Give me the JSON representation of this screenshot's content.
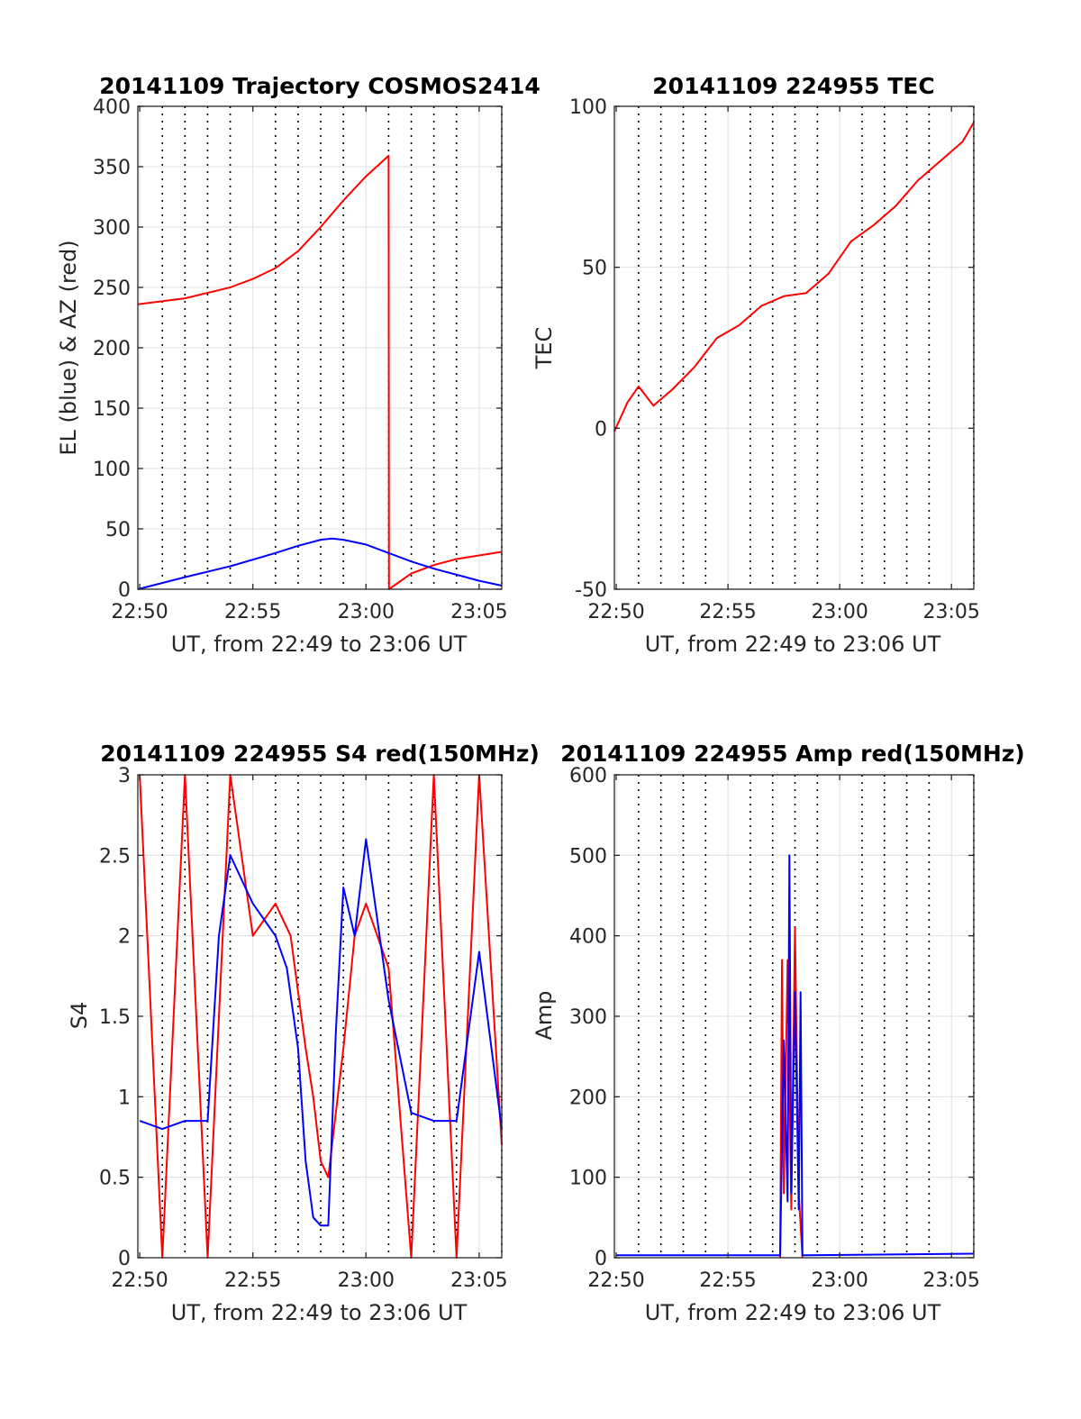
{
  "colors": {
    "az": "#ff0000",
    "el": "#0000ff",
    "tec": "#ff0000",
    "red": "#ff0000",
    "blue": "#0000ff",
    "grid": "#dfdfdf",
    "vline": "#000000"
  },
  "chart_data": [
    {
      "type": "line",
      "title": "20141109 Trajectory COSMOS2414",
      "xlabel": "UT, from 22:49 to 23:06 UT",
      "ylabel": "EL (blue) & AZ (red)",
      "xlim": [
        "22:49:55",
        "23:06:00"
      ],
      "ylim": [
        0,
        400
      ],
      "x_ticks": [
        "22:50",
        "22:55",
        "23:00",
        "23:05"
      ],
      "y_ticks": [
        0,
        50,
        100,
        150,
        200,
        250,
        300,
        350,
        400
      ],
      "grid": true,
      "time_markers": [
        "22:51",
        "22:52",
        "22:53",
        "22:54",
        "22:56",
        "22:57",
        "22:58",
        "22:59",
        "23:01",
        "23:02",
        "23:03",
        "23:04",
        "23:06"
      ],
      "series": [
        {
          "color": "red",
          "x": [
            "22:49:55",
            "22:52:00",
            "22:54:00",
            "22:55:00",
            "22:56:00",
            "22:57:00",
            "22:58:00",
            "22:59:00",
            "23:00:00",
            "23:01:00",
            "23:01:01",
            "23:02:00",
            "23:03:00",
            "23:04:00",
            "23:05:00",
            "23:06:00"
          ],
          "values": [
            236,
            241,
            250,
            257,
            266,
            280,
            300,
            322,
            342,
            359,
            0,
            13,
            20,
            25,
            28,
            31
          ]
        },
        {
          "color": "blue",
          "x": [
            "22:49:55",
            "22:52:00",
            "22:54:00",
            "22:56:00",
            "22:57:00",
            "22:58:00",
            "22:58:30",
            "22:59:00",
            "23:00:00",
            "23:01:00",
            "23:02:00",
            "23:03:00",
            "23:04:00",
            "23:05:00",
            "23:06:00"
          ],
          "values": [
            0,
            10,
            19,
            30,
            36,
            41,
            42,
            41,
            37,
            30,
            23,
            17,
            12,
            7,
            3
          ]
        }
      ]
    },
    {
      "type": "line",
      "title": "20141109 224955 TEC",
      "xlabel": "UT, from 22:49 to 23:06 UT",
      "ylabel": "TEC",
      "xlim": [
        "22:49:55",
        "23:06:00"
      ],
      "ylim": [
        -50,
        100
      ],
      "x_ticks": [
        "22:50",
        "22:55",
        "23:00",
        "23:05"
      ],
      "y_ticks": [
        -50,
        0,
        50,
        100
      ],
      "grid": true,
      "time_markers": [
        "22:51",
        "22:52",
        "22:53",
        "22:54",
        "22:56",
        "22:57",
        "22:58",
        "22:59",
        "23:01",
        "23:02",
        "23:03",
        "23:04",
        "23:06"
      ],
      "series": [
        {
          "color": "red",
          "x": [
            "22:49:55",
            "22:50:30",
            "22:51:00",
            "22:51:40",
            "22:52:30",
            "22:53:30",
            "22:54:30",
            "22:55:30",
            "22:56:30",
            "22:57:30",
            "22:58:30",
            "22:59:30",
            "23:00:30",
            "23:01:30",
            "23:02:30",
            "23:03:30",
            "23:04:30",
            "23:05:30",
            "23:06:00"
          ],
          "values": [
            -1,
            8,
            13,
            7,
            12,
            19,
            28,
            32,
            38,
            41,
            42,
            48,
            58,
            63,
            69,
            77,
            83,
            89,
            95
          ]
        }
      ]
    },
    {
      "type": "line",
      "title": "20141109 224955 S4 red(150MHz)",
      "xlabel": "UT, from 22:49 to 23:06 UT",
      "ylabel": "S4",
      "xlim": [
        "22:49:55",
        "23:06:00"
      ],
      "ylim": [
        0,
        3
      ],
      "x_ticks": [
        "22:50",
        "22:55",
        "23:00",
        "23:05"
      ],
      "y_ticks": [
        0,
        0.5,
        1,
        1.5,
        2,
        2.5,
        3
      ],
      "grid": true,
      "time_markers": [
        "22:51",
        "22:52",
        "22:53",
        "22:54",
        "22:56",
        "22:57",
        "22:58",
        "22:59",
        "23:01",
        "23:02",
        "23:03",
        "23:04",
        "23:06"
      ],
      "series": [
        {
          "color": "red",
          "x": [
            "22:50:00",
            "22:51:00",
            "22:52:00",
            "22:53:00",
            "22:54:00",
            "22:55:00",
            "22:56:00",
            "22:56:40",
            "22:57:20",
            "22:57:40",
            "22:58:00",
            "22:58:20",
            "22:58:40",
            "22:59:00",
            "22:59:30",
            "23:00:00",
            "23:01:00",
            "23:02:00",
            "23:03:00",
            "23:04:00",
            "23:05:00",
            "23:06:00"
          ],
          "values": [
            3.0,
            0.0,
            3.0,
            0.0,
            3.0,
            2.0,
            2.2,
            2.0,
            1.3,
            1.0,
            0.6,
            0.5,
            0.9,
            1.3,
            2.0,
            2.2,
            1.8,
            0.0,
            3.0,
            0.0,
            3.0,
            0.7
          ]
        },
        {
          "color": "blue",
          "x": [
            "22:50:00",
            "22:51:00",
            "22:52:00",
            "22:53:00",
            "22:53:30",
            "22:54:00",
            "22:55:00",
            "22:56:00",
            "22:56:30",
            "22:57:00",
            "22:57:20",
            "22:57:40",
            "22:58:00",
            "22:58:20",
            "22:58:40",
            "22:59:00",
            "22:59:30",
            "23:00:00",
            "23:01:00",
            "23:02:00",
            "23:03:00",
            "23:04:00",
            "23:05:00",
            "23:06:00"
          ],
          "values": [
            0.85,
            0.8,
            0.85,
            0.85,
            2.0,
            2.5,
            2.2,
            2.0,
            1.8,
            1.3,
            0.6,
            0.25,
            0.2,
            0.2,
            1.4,
            2.3,
            2.0,
            2.6,
            1.6,
            0.9,
            0.85,
            0.85,
            1.9,
            0.8
          ]
        }
      ]
    },
    {
      "type": "line",
      "title": "20141109 224955 Amp red(150MHz)",
      "xlabel": "UT, from 22:49 to 23:06 UT",
      "ylabel": "Amp",
      "xlim": [
        "22:49:55",
        "23:06:00"
      ],
      "ylim": [
        0,
        600
      ],
      "x_ticks": [
        "22:50",
        "22:55",
        "23:00",
        "23:05"
      ],
      "y_ticks": [
        0,
        100,
        200,
        300,
        400,
        500,
        600
      ],
      "grid": true,
      "time_markers": [
        "22:51",
        "22:52",
        "22:53",
        "22:54",
        "22:56",
        "22:57",
        "22:58",
        "22:59",
        "23:01",
        "23:02",
        "23:03",
        "23:04",
        "23:06"
      ],
      "series": [
        {
          "color": "red",
          "x": [
            "22:57:20",
            "22:57:25",
            "22:57:30",
            "22:57:40",
            "22:57:50",
            "22:58:00",
            "22:58:10",
            "22:58:20"
          ],
          "values": [
            0,
            370,
            80,
            370,
            60,
            410,
            80,
            0
          ]
        },
        {
          "color": "blue",
          "x": [
            "22:50:00",
            "22:57:20",
            "22:57:30",
            "22:57:40",
            "22:57:45",
            "22:57:50",
            "22:58:00",
            "22:58:10",
            "22:58:15",
            "22:58:20",
            "22:58:30",
            "23:06:00"
          ],
          "values": [
            3,
            3,
            270,
            70,
            500,
            80,
            330,
            60,
            330,
            3,
            3,
            5
          ]
        }
      ]
    }
  ]
}
